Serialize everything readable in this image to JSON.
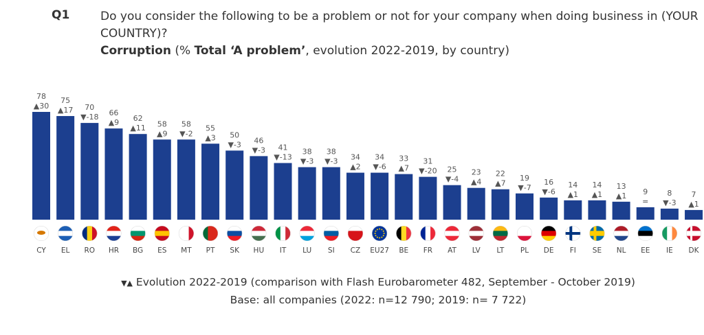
{
  "header": {
    "qnum": "Q1",
    "question": "Do you consider the following to be a problem or not for your company when doing business in (YOUR COUNTRY)?",
    "subject": "Corruption",
    "sub_mid1": " (% ",
    "sub_bold": "Total ‘A problem’",
    "sub_rest": ", evolution 2022-2019, by country)"
  },
  "chart_data": {
    "type": "bar",
    "bar_color": "#1c3f8f",
    "categories": [
      "CY",
      "EL",
      "RO",
      "HR",
      "BG",
      "ES",
      "MT",
      "PT",
      "SK",
      "HU",
      "IT",
      "LU",
      "SI",
      "CZ",
      "EU27",
      "BE",
      "FR",
      "AT",
      "LV",
      "LT",
      "PL",
      "DE",
      "FI",
      "SE",
      "NL",
      "EE",
      "IE",
      "DK"
    ],
    "values": [
      78,
      75,
      70,
      66,
      62,
      58,
      58,
      55,
      50,
      46,
      41,
      38,
      38,
      34,
      34,
      33,
      31,
      25,
      23,
      22,
      19,
      16,
      14,
      14,
      13,
      9,
      8,
      7
    ],
    "evolution": [
      30,
      17,
      -18,
      9,
      11,
      9,
      -2,
      3,
      -3,
      -3,
      -13,
      -3,
      -3,
      2,
      -6,
      7,
      -20,
      -4,
      4,
      7,
      -7,
      -6,
      1,
      1,
      1,
      0,
      -3,
      1
    ],
    "ylim": [
      0,
      80
    ],
    "grid": false,
    "flags": {
      "CY": [
        "#fff",
        "#fff",
        "#fff"
      ],
      "EL": [
        "#1d5fb5",
        "#fff",
        "#1d5fb5"
      ],
      "RO": [
        "v",
        "#002b7f",
        "#fcd116",
        "#ce1126"
      ],
      "HR": [
        "#e2231a",
        "#fff",
        "#1c3f94"
      ],
      "BG": [
        "#fff",
        "#00966e",
        "#d62612"
      ],
      "ES": [
        "#c60b1e",
        "#ffc400",
        "#c60b1e"
      ],
      "MT": [
        "v",
        "#fff",
        "#fff",
        "#cf142b"
      ],
      "PT": [
        "v",
        "#046a38",
        "#da291c",
        "#da291c"
      ],
      "SK": [
        "#fff",
        "#0b4ea2",
        "#ee1c25"
      ],
      "HU": [
        "#ce2939",
        "#fff",
        "#477050"
      ],
      "IT": [
        "v",
        "#009246",
        "#fff",
        "#ce2b37"
      ],
      "LU": [
        "#ed2939",
        "#fff",
        "#00a1de"
      ],
      "SI": [
        "#fff",
        "#005da4",
        "#ed1c24"
      ],
      "CZ": [
        "#fff",
        "#d7141a",
        "#d7141a"
      ],
      "EU27": [
        "#039",
        "#039",
        "#039"
      ],
      "BE": [
        "v",
        "#000",
        "#fdda24",
        "#ef3340"
      ],
      "FR": [
        "v",
        "#002395",
        "#fff",
        "#ed2939"
      ],
      "AT": [
        "#ed2939",
        "#fff",
        "#ed2939"
      ],
      "LV": [
        "#9e3039",
        "#fff",
        "#9e3039"
      ],
      "LT": [
        "#fdb913",
        "#006a44",
        "#c1272d"
      ],
      "PL": [
        "#fff",
        "#fff",
        "#dc143c"
      ],
      "DE": [
        "#000",
        "#dd0000",
        "#ffce00"
      ],
      "FI": [
        "#fff",
        "#003580",
        "#fff"
      ],
      "SE": [
        "#006aa7",
        "#fecc00",
        "#006aa7"
      ],
      "NL": [
        "#ae1c28",
        "#fff",
        "#21468b"
      ],
      "EE": [
        "#0072ce",
        "#000",
        "#fff"
      ],
      "IE": [
        "v",
        "#169b62",
        "#fff",
        "#ff883e"
      ],
      "DK": [
        "#c8102e",
        "#fff",
        "#c8102e"
      ]
    }
  },
  "footer": {
    "legend_icons": "▼▲",
    "line1": " Evolution 2022-2019 (comparison with Flash Eurobarometer 482, September - October 2019)",
    "line2": "Base: all companies (2022: n=12 790; 2019: n= 7 722)"
  }
}
